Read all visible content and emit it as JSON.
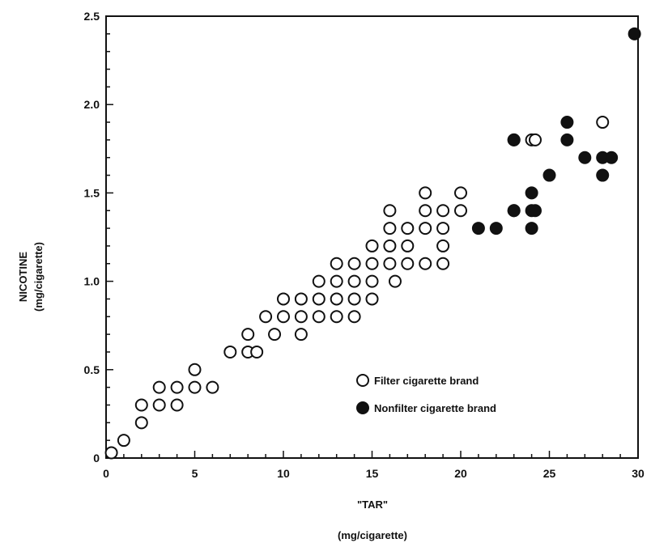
{
  "chart_data": {
    "type": "scatter",
    "xlabel": "\"TAR\"",
    "xlabel_unit": "(mg/cigarette)",
    "ylabel": "NICOTINE",
    "ylabel_unit": "(mg/cigarette)",
    "xlim": [
      0,
      30
    ],
    "ylim": [
      0,
      2.5
    ],
    "x_ticks": [
      "0",
      "5",
      "10",
      "15",
      "20",
      "25",
      "30"
    ],
    "y_ticks": [
      "0",
      "0.5",
      "1.0",
      "1.5",
      "2.0",
      "2.5"
    ],
    "grid": false,
    "legend_position": "lower-right inside plot",
    "series": [
      {
        "name": "Filter cigarette brand",
        "marker": "open-circle",
        "points": [
          [
            0.3,
            0.03
          ],
          [
            1.0,
            0.1
          ],
          [
            2.0,
            0.2
          ],
          [
            2.0,
            0.3
          ],
          [
            3.0,
            0.4
          ],
          [
            3.0,
            0.3
          ],
          [
            4.0,
            0.4
          ],
          [
            4.0,
            0.3
          ],
          [
            5.0,
            0.5
          ],
          [
            5.0,
            0.4
          ],
          [
            6.0,
            0.4
          ],
          [
            7.0,
            0.6
          ],
          [
            8.0,
            0.6
          ],
          [
            8.0,
            0.7
          ],
          [
            8.5,
            0.6
          ],
          [
            9.0,
            0.8
          ],
          [
            9.5,
            0.7
          ],
          [
            10.0,
            0.9
          ],
          [
            10.0,
            0.8
          ],
          [
            11.0,
            0.9
          ],
          [
            11.0,
            0.8
          ],
          [
            11.0,
            0.7
          ],
          [
            12.0,
            1.0
          ],
          [
            12.0,
            0.9
          ],
          [
            12.0,
            0.8
          ],
          [
            13.0,
            1.1
          ],
          [
            13.0,
            1.0
          ],
          [
            13.0,
            0.9
          ],
          [
            13.0,
            0.8
          ],
          [
            14.0,
            1.1
          ],
          [
            14.0,
            1.0
          ],
          [
            14.0,
            0.9
          ],
          [
            14.0,
            0.8
          ],
          [
            15.0,
            1.2
          ],
          [
            15.0,
            1.1
          ],
          [
            15.0,
            1.0
          ],
          [
            15.0,
            0.9
          ],
          [
            16.0,
            1.4
          ],
          [
            16.0,
            1.3
          ],
          [
            16.0,
            1.2
          ],
          [
            16.0,
            1.1
          ],
          [
            16.3,
            1.0
          ],
          [
            17.0,
            1.3
          ],
          [
            17.0,
            1.2
          ],
          [
            17.0,
            1.1
          ],
          [
            18.0,
            1.5
          ],
          [
            18.0,
            1.4
          ],
          [
            18.0,
            1.3
          ],
          [
            18.0,
            1.1
          ],
          [
            19.0,
            1.4
          ],
          [
            19.0,
            1.3
          ],
          [
            19.0,
            1.2
          ],
          [
            19.0,
            1.1
          ],
          [
            20.0,
            1.5
          ],
          [
            20.0,
            1.4
          ],
          [
            23.0,
            1.8
          ],
          [
            23.0,
            1.4
          ],
          [
            24.0,
            1.8
          ],
          [
            24.2,
            1.8
          ],
          [
            28.0,
            1.9
          ]
        ]
      },
      {
        "name": "Nonfilter cigarette brand",
        "marker": "filled-circle",
        "points": [
          [
            21.0,
            1.3
          ],
          [
            22.0,
            1.3
          ],
          [
            23.0,
            1.8
          ],
          [
            23.0,
            1.4
          ],
          [
            24.0,
            1.5
          ],
          [
            24.0,
            1.4
          ],
          [
            24.0,
            1.3
          ],
          [
            24.2,
            1.4
          ],
          [
            25.0,
            1.6
          ],
          [
            26.0,
            1.9
          ],
          [
            26.0,
            1.8
          ],
          [
            27.0,
            1.7
          ],
          [
            28.0,
            1.7
          ],
          [
            28.0,
            1.6
          ],
          [
            28.5,
            1.7
          ],
          [
            29.8,
            2.4
          ]
        ]
      }
    ]
  }
}
